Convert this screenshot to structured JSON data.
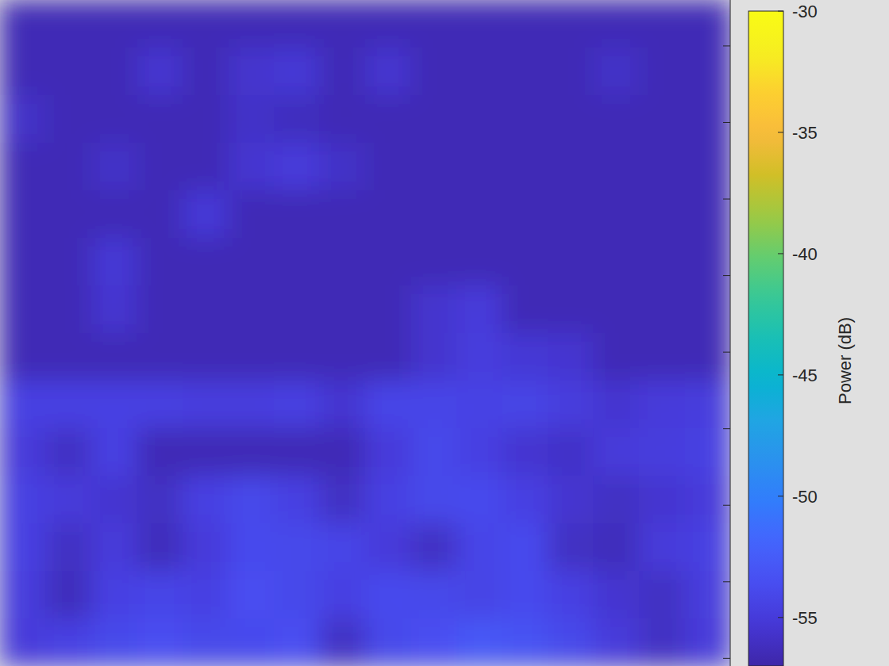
{
  "chart_data": {
    "type": "heatmap",
    "ylim": [
      0,
      8.7
    ],
    "yticks": [
      0.6,
      1.6,
      2.6,
      3.6,
      4.6,
      5.6,
      6.6,
      7.6,
      8.6
    ],
    "tick_labels": false,
    "cells": [
      [
        -56.5,
        -56.5,
        -56.5,
        -56.5,
        -56.5,
        -56.5,
        -56.5,
        -56.5,
        -56.5,
        -56.5,
        -56.5,
        -56.5,
        -56.5,
        -56.5,
        -56.5,
        -56.5
      ],
      [
        -56.5,
        -56.5,
        -56.5,
        -55.5,
        -56.5,
        -55.6,
        -55.3,
        -56.5,
        -55.5,
        -56.5,
        -56.5,
        -56.5,
        -56.5,
        -55.8,
        -56.5,
        -56.5
      ],
      [
        -55.8,
        -56.5,
        -56.5,
        -56.5,
        -56.5,
        -55.8,
        -56.2,
        -56.5,
        -56.5,
        -56.5,
        -56.5,
        -56.5,
        -56.5,
        -56.5,
        -56.5,
        -56.5
      ],
      [
        -56.5,
        -56.5,
        -55.8,
        -56.5,
        -56.5,
        -55.5,
        -55.0,
        -55.8,
        -56.5,
        -56.5,
        -56.5,
        -56.5,
        -56.5,
        -56.5,
        -56.5,
        -56.5
      ],
      [
        -56.5,
        -56.5,
        -56.5,
        -56.5,
        -55.2,
        -56.5,
        -56.5,
        -56.5,
        -56.5,
        -56.5,
        -56.5,
        -56.5,
        -56.5,
        -56.5,
        -56.5,
        -56.5
      ],
      [
        -56.5,
        -56.5,
        -55.3,
        -56.5,
        -56.5,
        -56.5,
        -56.5,
        -56.5,
        -56.5,
        -56.5,
        -56.5,
        -56.5,
        -56.5,
        -56.5,
        -56.5,
        -56.5
      ],
      [
        -56.5,
        -56.5,
        -55.5,
        -56.5,
        -56.5,
        -56.5,
        -56.5,
        -56.5,
        -56.5,
        -55.6,
        -55.0,
        -56.5,
        -56.5,
        -56.5,
        -56.5,
        -56.5
      ],
      [
        -56.5,
        -56.5,
        -56.5,
        -56.5,
        -56.5,
        -56.5,
        -56.5,
        -56.5,
        -56.5,
        -55.6,
        -54.8,
        -55.3,
        -55.5,
        -56.5,
        -56.5,
        -56.5
      ],
      [
        -54.5,
        -54.5,
        -54.5,
        -54.6,
        -54.8,
        -54.8,
        -54.6,
        -55.5,
        -54.2,
        -54.2,
        -54.4,
        -54.3,
        -54.8,
        -55.5,
        -55.0,
        -54.8
      ],
      [
        -55.0,
        -56.0,
        -54.5,
        -56.5,
        -56.5,
        -56.5,
        -56.5,
        -56.5,
        -55.0,
        -54.0,
        -54.5,
        -55.5,
        -55.8,
        -55.0,
        -54.8,
        -54.5
      ],
      [
        -54.5,
        -55.0,
        -55.5,
        -56.0,
        -54.5,
        -54.0,
        -54.5,
        -56.0,
        -54.5,
        -54.0,
        -53.8,
        -54.5,
        -55.5,
        -56.0,
        -55.5,
        -55.0
      ],
      [
        -54.5,
        -56.0,
        -55.0,
        -56.3,
        -55.0,
        -53.8,
        -54.0,
        -54.2,
        -55.0,
        -56.0,
        -54.2,
        -53.8,
        -56.0,
        -56.3,
        -55.0,
        -54.5
      ],
      [
        -54.8,
        -56.3,
        -54.5,
        -54.2,
        -54.5,
        -53.5,
        -54.0,
        -54.5,
        -53.8,
        -54.0,
        -54.3,
        -53.8,
        -54.5,
        -55.5,
        -56.0,
        -54.8
      ],
      [
        -55.0,
        -54.5,
        -54.0,
        -53.5,
        -54.0,
        -53.8,
        -53.5,
        -56.0,
        -54.0,
        -53.5,
        -52.8,
        -53.2,
        -54.0,
        -55.0,
        -56.0,
        -55.0
      ]
    ],
    "colorbar_lim": [
      -57,
      -30
    ],
    "colorbar_ticks": [
      -55,
      -50,
      -45,
      -40,
      -35,
      -30
    ],
    "colorbar_label": "Power (dB)"
  }
}
